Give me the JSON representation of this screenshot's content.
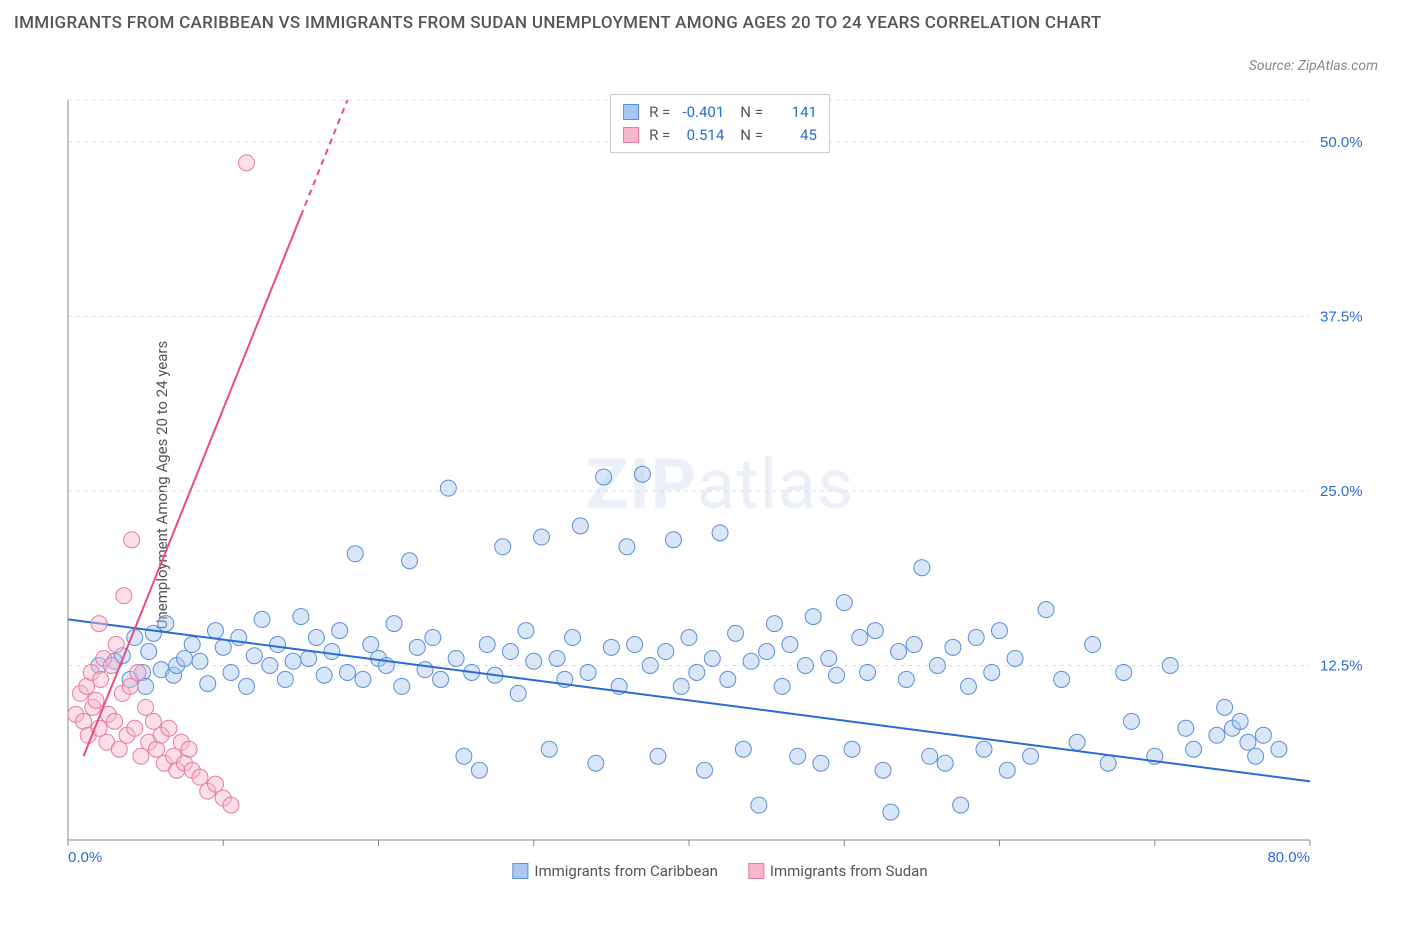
{
  "title": "IMMIGRANTS FROM CARIBBEAN VS IMMIGRANTS FROM SUDAN UNEMPLOYMENT AMONG AGES 20 TO 24 YEARS CORRELATION CHART",
  "source": "Source: ZipAtlas.com",
  "y_axis_label": "Unemployment Among Ages 20 to 24 years",
  "watermark_bold": "ZIP",
  "watermark_light": "atlas",
  "chart": {
    "type": "scatter",
    "xlim": [
      0,
      80
    ],
    "ylim": [
      0,
      53
    ],
    "x_ticks": [
      0,
      10,
      20,
      30,
      40,
      50,
      60,
      70,
      80
    ],
    "x_tick_labels": {
      "0": "0.0%",
      "80": "80.0%"
    },
    "y_ticks": [
      12.5,
      25.0,
      37.5,
      50.0
    ],
    "y_tick_labels": [
      "12.5%",
      "25.0%",
      "37.5%",
      "50.0%"
    ],
    "grid_color": "#dddddd",
    "axis_color": "#888888",
    "tick_label_color": "#2b6cd4",
    "background_color": "#ffffff",
    "marker_radius": 8,
    "marker_opacity": 0.45,
    "series": [
      {
        "name": "Immigrants from Caribbean",
        "fill": "#a8c8f0",
        "stroke": "#5b8fd6",
        "R": "-0.401",
        "N": "141",
        "trend": {
          "x1": 0,
          "y1": 15.8,
          "x2": 80,
          "y2": 4.2,
          "color": "#2b6cd4",
          "width": 2
        },
        "points": [
          [
            2,
            12.5
          ],
          [
            3,
            12.8
          ],
          [
            3.5,
            13.2
          ],
          [
            4,
            11.5
          ],
          [
            4.3,
            14.5
          ],
          [
            4.8,
            12.0
          ],
          [
            5,
            11.0
          ],
          [
            5.2,
            13.5
          ],
          [
            5.5,
            14.8
          ],
          [
            6,
            12.2
          ],
          [
            6.3,
            15.5
          ],
          [
            6.8,
            11.8
          ],
          [
            7,
            12.5
          ],
          [
            7.5,
            13.0
          ],
          [
            8,
            14.0
          ],
          [
            8.5,
            12.8
          ],
          [
            9,
            11.2
          ],
          [
            9.5,
            15.0
          ],
          [
            10,
            13.8
          ],
          [
            10.5,
            12.0
          ],
          [
            11,
            14.5
          ],
          [
            11.5,
            11.0
          ],
          [
            12,
            13.2
          ],
          [
            12.5,
            15.8
          ],
          [
            13,
            12.5
          ],
          [
            13.5,
            14.0
          ],
          [
            14,
            11.5
          ],
          [
            14.5,
            12.8
          ],
          [
            15,
            16.0
          ],
          [
            15.5,
            13.0
          ],
          [
            16,
            14.5
          ],
          [
            16.5,
            11.8
          ],
          [
            17,
            13.5
          ],
          [
            17.5,
            15.0
          ],
          [
            18,
            12.0
          ],
          [
            18.5,
            20.5
          ],
          [
            19,
            11.5
          ],
          [
            19.5,
            14.0
          ],
          [
            20,
            13.0
          ],
          [
            20.5,
            12.5
          ],
          [
            21,
            15.5
          ],
          [
            21.5,
            11.0
          ],
          [
            22,
            20.0
          ],
          [
            22.5,
            13.8
          ],
          [
            23,
            12.2
          ],
          [
            23.5,
            14.5
          ],
          [
            24,
            11.5
          ],
          [
            24.5,
            25.2
          ],
          [
            25,
            13.0
          ],
          [
            25.5,
            6.0
          ],
          [
            26,
            12.0
          ],
          [
            26.5,
            5.0
          ],
          [
            27,
            14.0
          ],
          [
            27.5,
            11.8
          ],
          [
            28,
            21.0
          ],
          [
            28.5,
            13.5
          ],
          [
            29,
            10.5
          ],
          [
            29.5,
            15.0
          ],
          [
            30,
            12.8
          ],
          [
            30.5,
            21.7
          ],
          [
            31,
            6.5
          ],
          [
            31.5,
            13.0
          ],
          [
            32,
            11.5
          ],
          [
            32.5,
            14.5
          ],
          [
            33,
            22.5
          ],
          [
            33.5,
            12.0
          ],
          [
            34,
            5.5
          ],
          [
            34.5,
            26.0
          ],
          [
            35,
            13.8
          ],
          [
            35.5,
            11.0
          ],
          [
            36,
            21.0
          ],
          [
            36.5,
            14.0
          ],
          [
            37,
            26.2
          ],
          [
            37.5,
            12.5
          ],
          [
            38,
            6.0
          ],
          [
            38.5,
            13.5
          ],
          [
            39,
            21.5
          ],
          [
            39.5,
            11.0
          ],
          [
            40,
            14.5
          ],
          [
            40.5,
            12.0
          ],
          [
            41,
            5.0
          ],
          [
            41.5,
            13.0
          ],
          [
            42,
            22.0
          ],
          [
            42.5,
            11.5
          ],
          [
            43,
            14.8
          ],
          [
            43.5,
            6.5
          ],
          [
            44,
            12.8
          ],
          [
            44.5,
            2.5
          ],
          [
            45,
            13.5
          ],
          [
            45.5,
            15.5
          ],
          [
            46,
            11.0
          ],
          [
            46.5,
            14.0
          ],
          [
            47,
            6.0
          ],
          [
            47.5,
            12.5
          ],
          [
            48,
            16.0
          ],
          [
            48.5,
            5.5
          ],
          [
            49,
            13.0
          ],
          [
            49.5,
            11.8
          ],
          [
            50,
            17.0
          ],
          [
            50.5,
            6.5
          ],
          [
            51,
            14.5
          ],
          [
            51.5,
            12.0
          ],
          [
            52,
            15.0
          ],
          [
            52.5,
            5.0
          ],
          [
            53,
            2.0
          ],
          [
            53.5,
            13.5
          ],
          [
            54,
            11.5
          ],
          [
            54.5,
            14.0
          ],
          [
            55,
            19.5
          ],
          [
            55.5,
            6.0
          ],
          [
            56,
            12.5
          ],
          [
            56.5,
            5.5
          ],
          [
            57,
            13.8
          ],
          [
            57.5,
            2.5
          ],
          [
            58,
            11.0
          ],
          [
            58.5,
            14.5
          ],
          [
            59,
            6.5
          ],
          [
            59.5,
            12.0
          ],
          [
            60,
            15.0
          ],
          [
            60.5,
            5.0
          ],
          [
            61,
            13.0
          ],
          [
            62,
            6.0
          ],
          [
            63,
            16.5
          ],
          [
            64,
            11.5
          ],
          [
            65,
            7.0
          ],
          [
            66,
            14.0
          ],
          [
            67,
            5.5
          ],
          [
            68,
            12.0
          ],
          [
            68.5,
            8.5
          ],
          [
            70,
            6.0
          ],
          [
            71,
            12.5
          ],
          [
            72,
            8.0
          ],
          [
            72.5,
            6.5
          ],
          [
            74,
            7.5
          ],
          [
            74.5,
            9.5
          ],
          [
            75,
            8.0
          ],
          [
            75.5,
            8.5
          ],
          [
            76,
            7.0
          ],
          [
            76.5,
            6.0
          ],
          [
            77,
            7.5
          ],
          [
            78,
            6.5
          ]
        ]
      },
      {
        "name": "Immigrants from Sudan",
        "fill": "#f5b8cc",
        "stroke": "#e87aa3",
        "R": "0.514",
        "N": "45",
        "trend": {
          "x1": 1,
          "y1": 6.0,
          "x2": 18,
          "y2": 53,
          "dashed_from_x": 15,
          "color": "#e84a8a",
          "width": 2
        },
        "points": [
          [
            0.5,
            9.0
          ],
          [
            0.8,
            10.5
          ],
          [
            1.0,
            8.5
          ],
          [
            1.2,
            11.0
          ],
          [
            1.3,
            7.5
          ],
          [
            1.5,
            12.0
          ],
          [
            1.6,
            9.5
          ],
          [
            1.8,
            10.0
          ],
          [
            2.0,
            8.0
          ],
          [
            2.1,
            11.5
          ],
          [
            2.3,
            13.0
          ],
          [
            2.5,
            7.0
          ],
          [
            2.6,
            9.0
          ],
          [
            2.8,
            12.5
          ],
          [
            3.0,
            8.5
          ],
          [
            3.1,
            14.0
          ],
          [
            3.3,
            6.5
          ],
          [
            3.5,
            10.5
          ],
          [
            3.6,
            17.5
          ],
          [
            3.8,
            7.5
          ],
          [
            4.0,
            11.0
          ],
          [
            4.1,
            21.5
          ],
          [
            4.3,
            8.0
          ],
          [
            4.5,
            12.0
          ],
          [
            4.7,
            6.0
          ],
          [
            5.0,
            9.5
          ],
          [
            5.2,
            7.0
          ],
          [
            5.5,
            8.5
          ],
          [
            5.7,
            6.5
          ],
          [
            6.0,
            7.5
          ],
          [
            6.2,
            5.5
          ],
          [
            6.5,
            8.0
          ],
          [
            6.8,
            6.0
          ],
          [
            7.0,
            5.0
          ],
          [
            7.3,
            7.0
          ],
          [
            7.5,
            5.5
          ],
          [
            7.8,
            6.5
          ],
          [
            8.0,
            5.0
          ],
          [
            8.5,
            4.5
          ],
          [
            9.0,
            3.5
          ],
          [
            9.5,
            4.0
          ],
          [
            10.0,
            3.0
          ],
          [
            10.5,
            2.5
          ],
          [
            11.5,
            48.5
          ],
          [
            2.0,
            15.5
          ]
        ]
      }
    ]
  },
  "stats_legend": {
    "r_label": "R =",
    "n_label": "N ="
  },
  "series_legend_labels": [
    "Immigrants from Caribbean",
    "Immigrants from Sudan"
  ]
}
